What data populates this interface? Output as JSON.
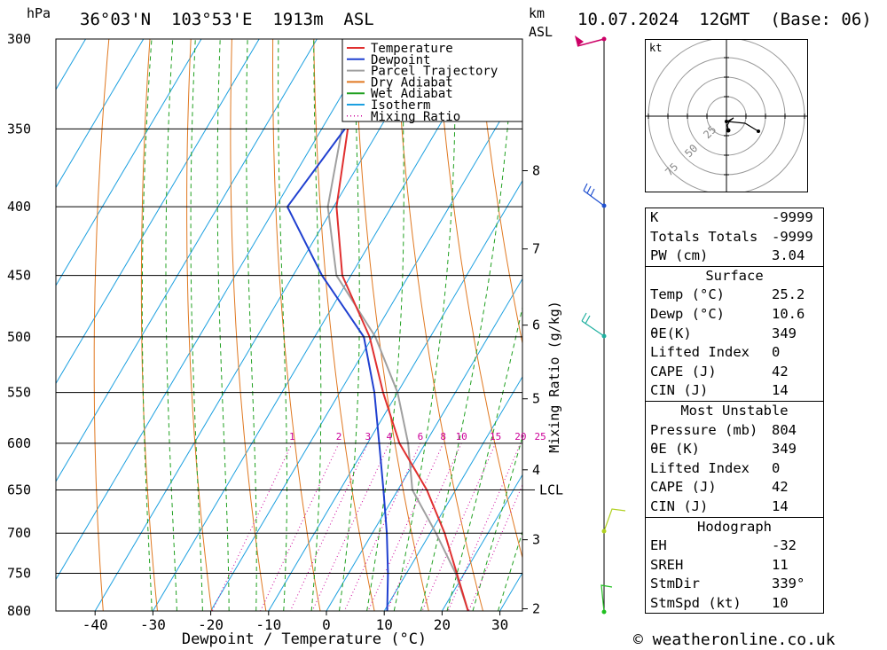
{
  "header": {
    "location": "36°03'N  103°53'E  1913m  ASL",
    "datetime": "10.07.2024  12GMT  (Base: 06)",
    "p_unit": "hPa",
    "km_unit": "km",
    "asl_unit": "ASL"
  },
  "chart_data": {
    "type": "line",
    "title": "",
    "xlabel": "Dewpoint / Temperature (°C)",
    "ylabel": "hPa",
    "y2label": "Mixing Ratio (g/kg)",
    "x_ticks": [
      -40,
      -30,
      -20,
      -10,
      0,
      10,
      20,
      30
    ],
    "pressure_levels": [
      300,
      350,
      400,
      450,
      500,
      550,
      600,
      650,
      700,
      750,
      800
    ],
    "height_km_ticks": [
      {
        "km": "8",
        "p": 376
      },
      {
        "km": "7",
        "p": 430
      },
      {
        "km": "6",
        "p": 490
      },
      {
        "km": "5",
        "p": 556
      },
      {
        "km": "4",
        "p": 628
      },
      {
        "km": "3",
        "p": 708
      },
      {
        "km": "2",
        "p": 797
      }
    ],
    "lcl": {
      "label": "LCL",
      "p": 650
    },
    "mixing_ratio_labels": [
      "1",
      "2",
      "3",
      "4",
      "6",
      "8",
      "10",
      "15",
      "20",
      "25"
    ],
    "series": [
      {
        "name": "Temperature",
        "color": "#e03030",
        "points": [
          [
            350,
            -45.5
          ],
          [
            400,
            -39.5
          ],
          [
            450,
            -31.5
          ],
          [
            500,
            -20.5
          ],
          [
            550,
            -12.5
          ],
          [
            600,
            -4.5
          ],
          [
            650,
            5
          ],
          [
            700,
            12.5
          ],
          [
            750,
            18.7
          ],
          [
            800,
            24.5
          ]
        ]
      },
      {
        "name": "Dewpoint",
        "color": "#2040d0",
        "points": [
          [
            350,
            -46
          ],
          [
            400,
            -48
          ],
          [
            450,
            -35
          ],
          [
            500,
            -21.5
          ],
          [
            550,
            -14
          ],
          [
            600,
            -8
          ],
          [
            650,
            -2.5
          ],
          [
            700,
            2.5
          ],
          [
            750,
            6.8
          ],
          [
            800,
            10.5
          ]
        ]
      },
      {
        "name": "Parcel Trajectory",
        "color": "#a0a0a0",
        "points": [
          [
            350,
            -46.5
          ],
          [
            400,
            -41
          ],
          [
            450,
            -32.5
          ],
          [
            500,
            -19.5
          ],
          [
            550,
            -10
          ],
          [
            600,
            -3
          ],
          [
            650,
            2.5
          ],
          [
            700,
            11
          ],
          [
            750,
            18.5
          ],
          [
            800,
            24.5
          ]
        ]
      }
    ],
    "legend": {
      "position": "top-right",
      "items": [
        {
          "label": "Temperature",
          "color": "#e03030",
          "style": "solid"
        },
        {
          "label": "Dewpoint",
          "color": "#2040d0",
          "style": "solid"
        },
        {
          "label": "Parcel Trajectory",
          "color": "#a0a0a0",
          "style": "solid"
        },
        {
          "label": "Dry Adiabat",
          "color": "#e07820",
          "style": "solid"
        },
        {
          "label": "Wet Adiabat",
          "color": "#20a020",
          "style": "solid"
        },
        {
          "label": "Isotherm",
          "color": "#1ca0e0",
          "style": "solid"
        },
        {
          "label": "Mixing Ratio",
          "color": "#cc0099",
          "style": "dotted"
        }
      ]
    }
  },
  "hodograph": {
    "unit": "kt",
    "ring_labels": [
      "25",
      "50",
      "75"
    ]
  },
  "indices": {
    "k_label": "K",
    "k": "-9999",
    "tt_label": "Totals Totals",
    "tt": "-9999",
    "pw_label": "PW (cm)",
    "pw": "3.04",
    "surface": {
      "title": "Surface",
      "temp_label": "Temp (°C)",
      "temp": "25.2",
      "dewp_label": "Dewp (°C)",
      "dewp": "10.6",
      "theta_label": "θE(K)",
      "theta": "349",
      "li_label": "Lifted Index",
      "li": "0",
      "cape_label": "CAPE (J)",
      "cape": "42",
      "cin_label": "CIN (J)",
      "cin": "14"
    },
    "most_unstable": {
      "title": "Most Unstable",
      "pres_label": "Pressure (mb)",
      "pres": "804",
      "theta_label": "θE (K)",
      "theta": "349",
      "li_label": "Lifted Index",
      "li": "0",
      "cape_label": "CAPE (J)",
      "cape": "42",
      "cin_label": "CIN (J)",
      "cin": "14"
    },
    "hodograph": {
      "title": "Hodograph",
      "eh_label": "EH",
      "eh": "-32",
      "sreh_label": "SREH",
      "sreh": "11",
      "stmdir_label": "StmDir",
      "stmdir": "339°",
      "stmspd_label": "StmSpd (kt)",
      "stmspd": "10"
    }
  },
  "credit": "© weatheronline.co.uk"
}
